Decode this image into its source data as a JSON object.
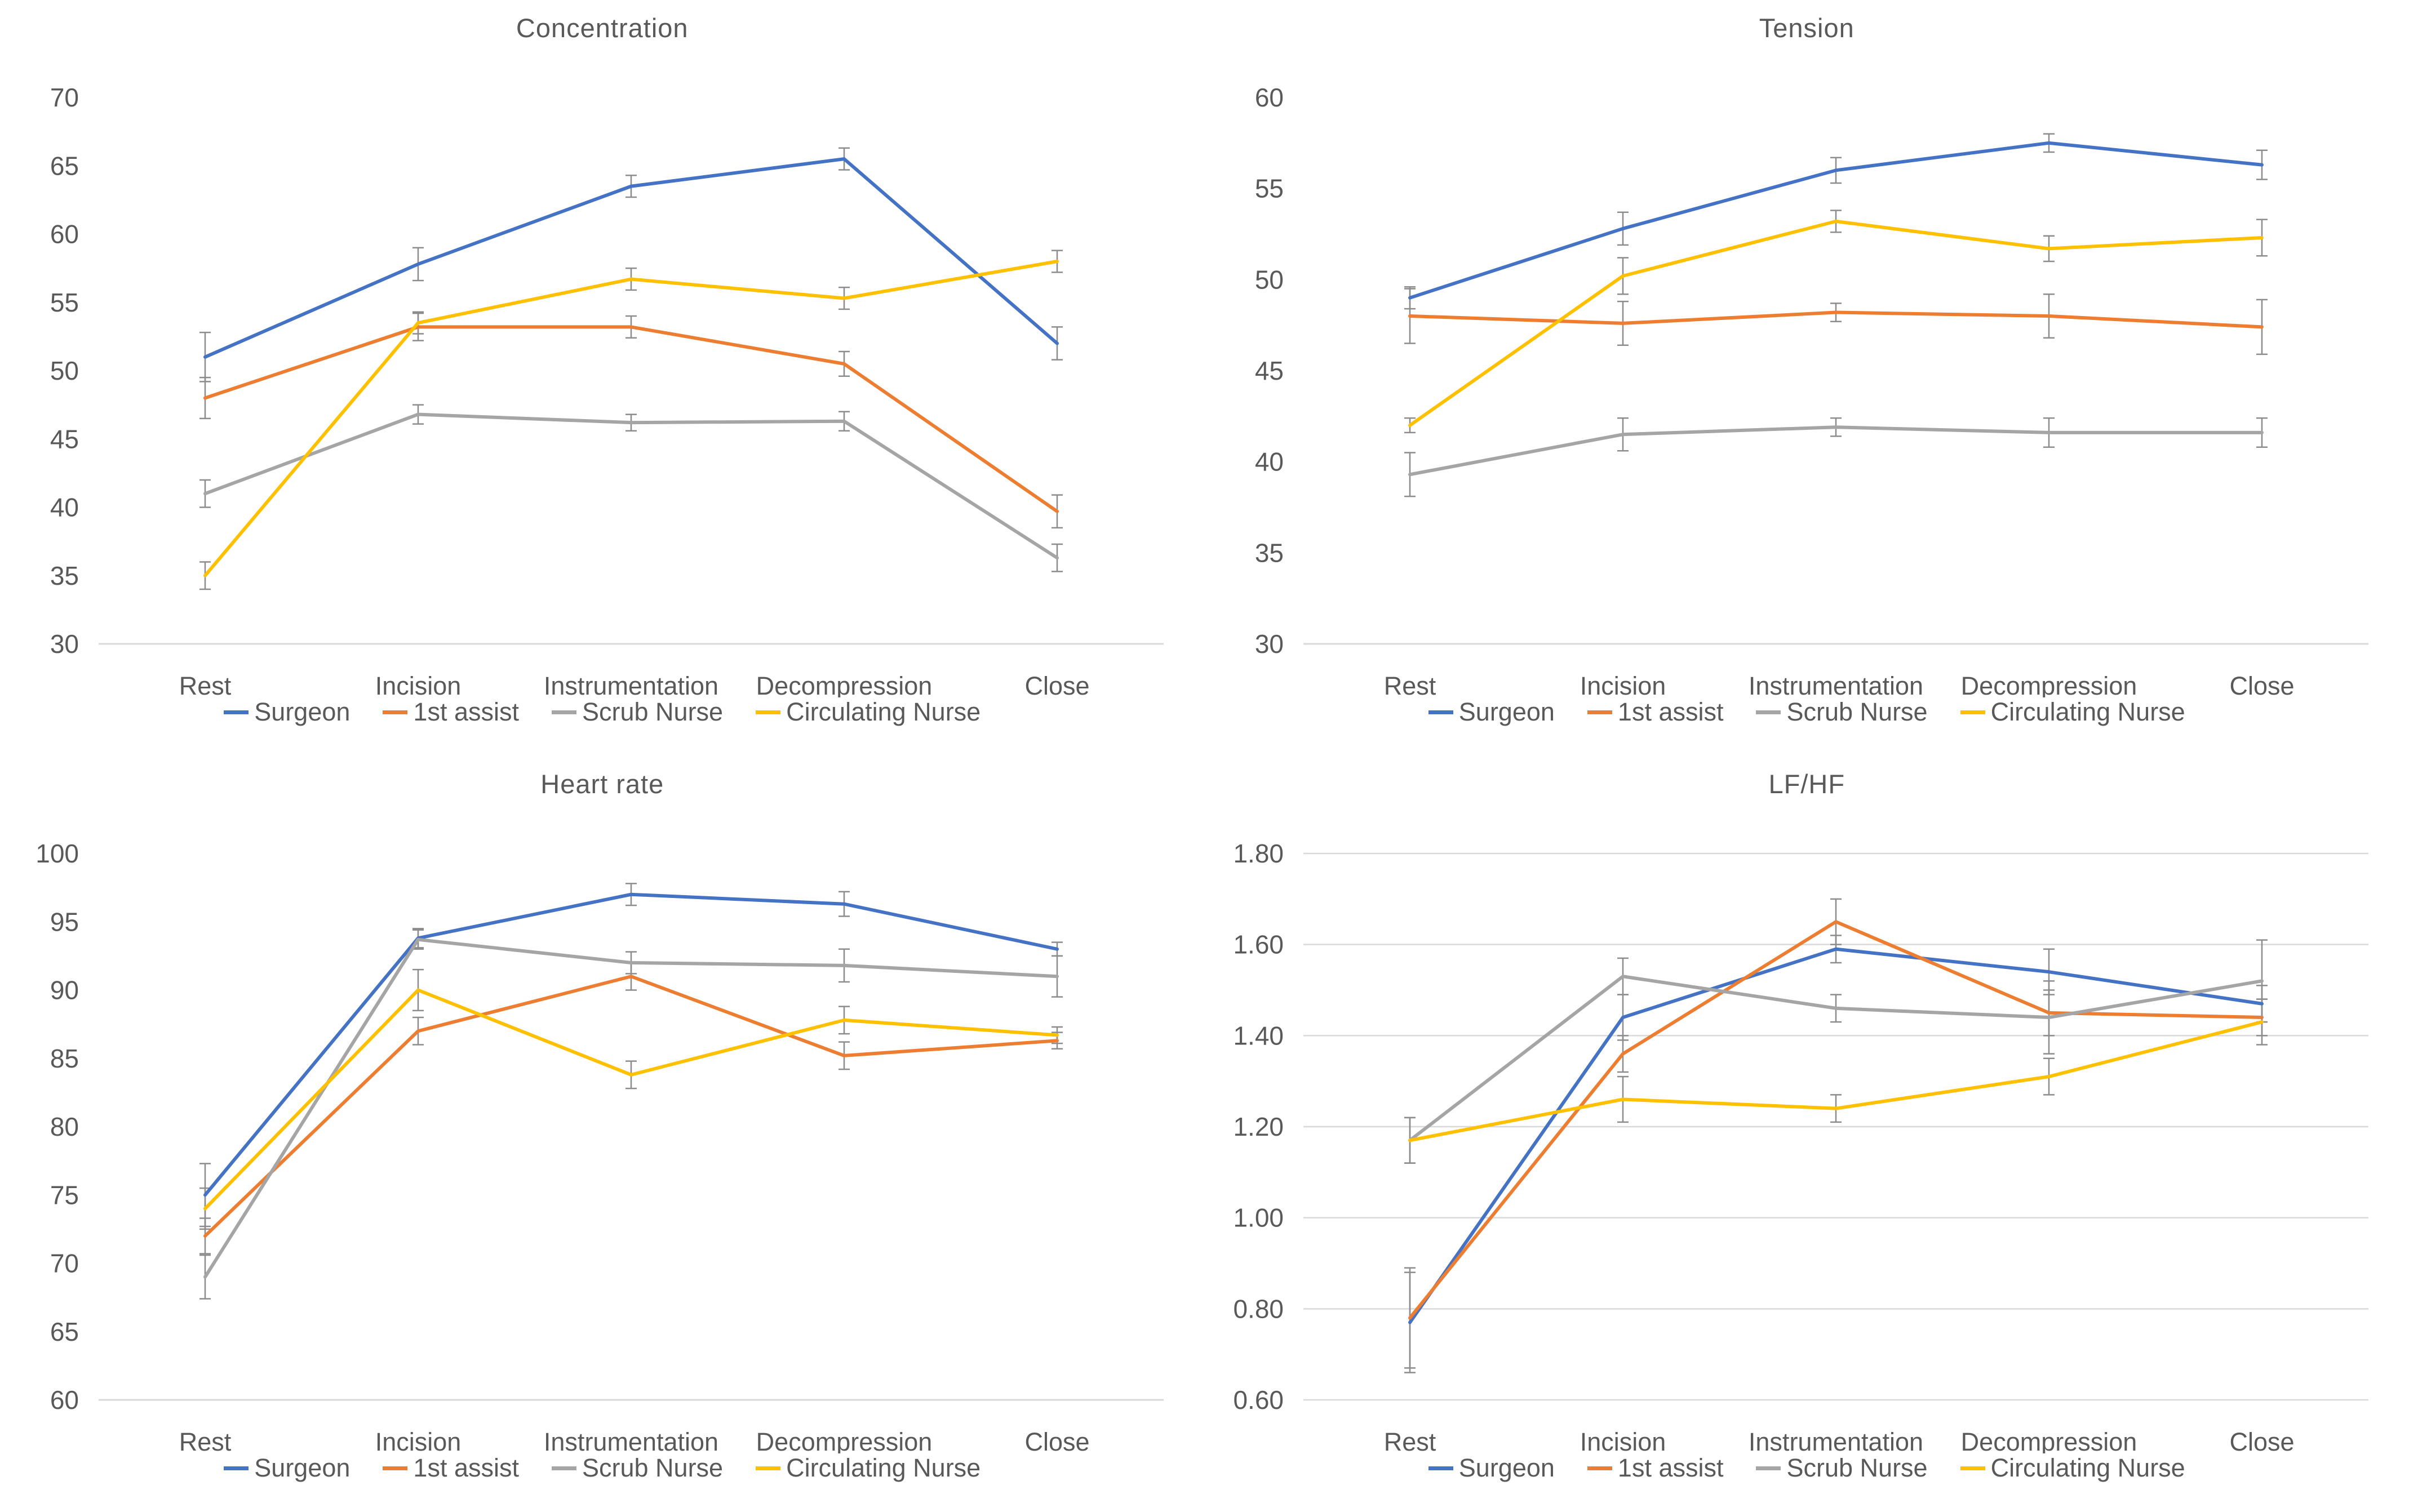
{
  "palette": {
    "series_colors": [
      "#4472C4",
      "#ED7D31",
      "#A5A5A5",
      "#FFC000"
    ],
    "text": "#595959",
    "axis_line": "#D9D9D9",
    "grid_line": "#D9D9D9",
    "error_bar": "#8C8C8C"
  },
  "categories": [
    "Rest",
    "Incision",
    "Instrumentation",
    "Decompression",
    "Close"
  ],
  "legend_labels": [
    "Surgeon",
    "1st assist",
    "Scrub Nurse",
    "Circulating Nurse"
  ],
  "chart_data": [
    {
      "type": "line",
      "title": "Concentration",
      "xlabel": "",
      "ylabel": "",
      "ylim": [
        30,
        70
      ],
      "ystep": 5,
      "decimals": 0,
      "grid": false,
      "legend_position": "bottom",
      "categories": [
        "Rest",
        "Incision",
        "Instrumentation",
        "Decompression",
        "Close"
      ],
      "series": [
        {
          "name": "Surgeon",
          "values": [
            51.0,
            57.8,
            63.5,
            65.5,
            52.0
          ],
          "errors": [
            1.8,
            1.2,
            0.8,
            0.8,
            1.2
          ]
        },
        {
          "name": "1st assist",
          "values": [
            48.0,
            53.2,
            53.2,
            50.5,
            39.7
          ],
          "errors": [
            1.5,
            1.0,
            0.8,
            0.9,
            1.2
          ]
        },
        {
          "name": "Scrub Nurse",
          "values": [
            41.0,
            46.8,
            46.2,
            46.3,
            36.3
          ],
          "errors": [
            1.0,
            0.7,
            0.6,
            0.7,
            1.0
          ]
        },
        {
          "name": "Circulating Nurse",
          "values": [
            35.0,
            53.5,
            56.7,
            55.3,
            58.0
          ],
          "errors": [
            1.0,
            0.8,
            0.8,
            0.8,
            0.8
          ]
        }
      ]
    },
    {
      "type": "line",
      "title": "Tension",
      "xlabel": "",
      "ylabel": "",
      "ylim": [
        30,
        60
      ],
      "ystep": 5,
      "decimals": 0,
      "grid": false,
      "legend_position": "bottom",
      "categories": [
        "Rest",
        "Incision",
        "Instrumentation",
        "Decompression",
        "Close"
      ],
      "series": [
        {
          "name": "Surgeon",
          "values": [
            49.0,
            52.8,
            56.0,
            57.5,
            56.3
          ],
          "errors": [
            0.6,
            0.9,
            0.7,
            0.5,
            0.8
          ]
        },
        {
          "name": "1st assist",
          "values": [
            48.0,
            47.6,
            48.2,
            48.0,
            47.4
          ],
          "errors": [
            1.5,
            1.2,
            0.5,
            1.2,
            1.5
          ]
        },
        {
          "name": "Scrub Nurse",
          "values": [
            39.3,
            41.5,
            41.9,
            41.6,
            41.6
          ],
          "errors": [
            1.2,
            0.9,
            0.5,
            0.8,
            0.8
          ]
        },
        {
          "name": "Circulating Nurse",
          "values": [
            42.0,
            50.2,
            53.2,
            51.7,
            52.3
          ],
          "errors": [
            0.4,
            1.0,
            0.6,
            0.7,
            1.0
          ]
        }
      ]
    },
    {
      "type": "line",
      "title": "Heart rate",
      "xlabel": "",
      "ylabel": "",
      "ylim": [
        60,
        100
      ],
      "ystep": 5,
      "decimals": 0,
      "grid": false,
      "legend_position": "bottom",
      "categories": [
        "Rest",
        "Incision",
        "Instrumentation",
        "Decompression",
        "Close"
      ],
      "series": [
        {
          "name": "Surgeon",
          "values": [
            75.0,
            93.8,
            97.0,
            96.3,
            93.0
          ],
          "errors": [
            2.3,
            0.7,
            0.8,
            0.9,
            0.5
          ]
        },
        {
          "name": "1st assist",
          "values": [
            72.0,
            87.0,
            91.0,
            85.2,
            86.3
          ],
          "errors": [
            1.3,
            1.0,
            1.0,
            1.0,
            0.6
          ]
        },
        {
          "name": "Scrub Nurse",
          "values": [
            69.0,
            93.7,
            92.0,
            91.8,
            91.0
          ],
          "errors": [
            1.6,
            0.7,
            0.8,
            1.2,
            1.5
          ]
        },
        {
          "name": "Circulating Nurse",
          "values": [
            74.0,
            90.0,
            83.8,
            87.8,
            86.7
          ],
          "errors": [
            1.5,
            1.5,
            1.0,
            1.0,
            0.6
          ]
        }
      ]
    },
    {
      "type": "line",
      "title": "LF/HF",
      "xlabel": "",
      "ylabel": "",
      "ylim": [
        0.6,
        1.8
      ],
      "ystep": 0.2,
      "decimals": 2,
      "grid": true,
      "legend_position": "bottom",
      "categories": [
        "Rest",
        "Incision",
        "Instrumentation",
        "Decompression",
        "Close"
      ],
      "series": [
        {
          "name": "Surgeon",
          "values": [
            0.77,
            1.44,
            1.59,
            1.54,
            1.47
          ],
          "errors": [
            0.11,
            0.05,
            0.03,
            0.05,
            0.04
          ]
        },
        {
          "name": "1st assist",
          "values": [
            0.78,
            1.36,
            1.65,
            1.45,
            1.44
          ],
          "errors": [
            0.11,
            0.04,
            0.05,
            0.05,
            0.04
          ]
        },
        {
          "name": "Scrub Nurse",
          "values": [
            1.17,
            1.53,
            1.46,
            1.44,
            1.52
          ],
          "errors": [
            0.05,
            0.04,
            0.03,
            0.08,
            0.09
          ]
        },
        {
          "name": "Circulating Nurse",
          "values": [
            1.17,
            1.26,
            1.24,
            1.31,
            1.43
          ],
          "errors": [
            0.05,
            0.05,
            0.03,
            0.04,
            0.05
          ]
        }
      ]
    }
  ]
}
